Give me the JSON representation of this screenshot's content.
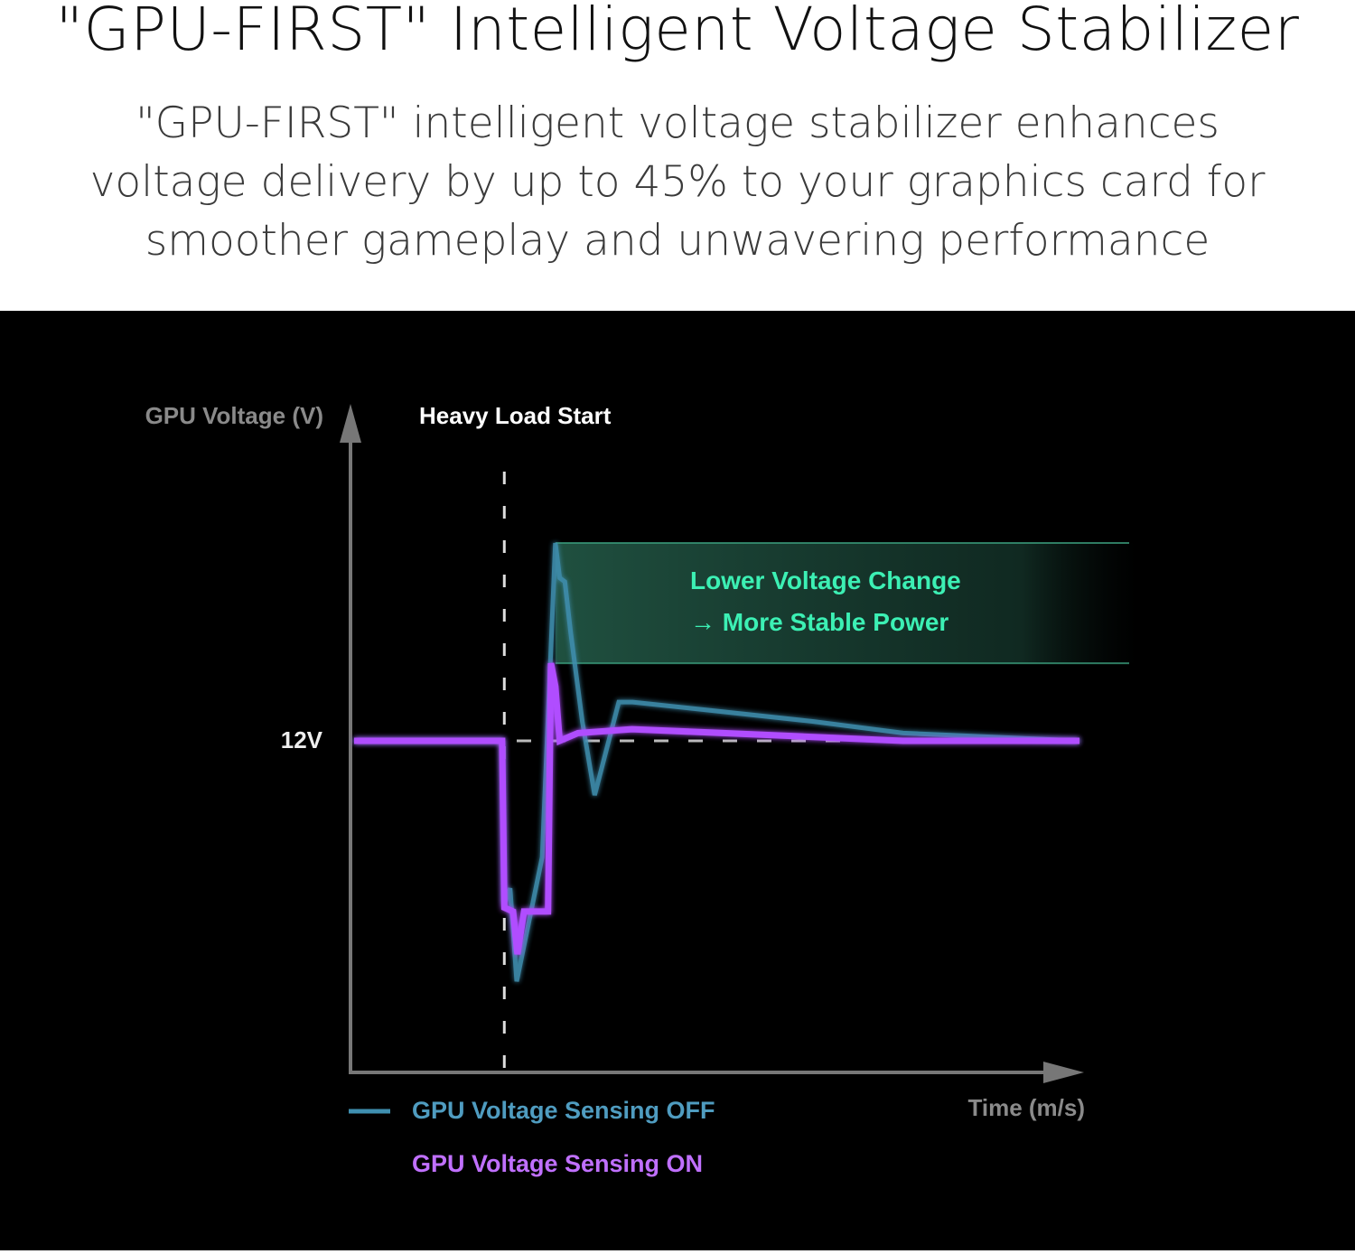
{
  "header": {
    "title": "\"GPU-FIRST\" Intelligent Voltage Stabilizer",
    "subtitle": "\"GPU-FIRST\" intelligent voltage stabilizer enhances voltage delivery by up to 45% to your graphics card for smoother gameplay and unwavering performance"
  },
  "chart_data": {
    "type": "line",
    "ylabel": "GPU Voltage (V)",
    "xlabel": "Time (m/s)",
    "y_tick_labels": [
      "12V"
    ],
    "xlim": [
      0,
      100
    ],
    "ylim": [
      11.15,
      12.85
    ],
    "grid": false,
    "legend_placement": "bottom-left",
    "annotations": {
      "event_label": "Heavy Load Start",
      "event_x": 21.1,
      "band_label_line1": "Lower Voltage Change",
      "band_label_line2": "→ More Stable Power",
      "band_y": [
        12.2,
        12.51
      ],
      "band_x_start": 28.1
    },
    "reference_line_y": 12,
    "colors": {
      "off": "#3f8fb0",
      "on": "#b04dff",
      "band": "#2a6b55",
      "band_text": "#3cf0b4",
      "axis": "#777777"
    },
    "series": [
      {
        "name": "GPU Voltage Sensing OFF",
        "points": [
          [
            0.5,
            12.0
          ],
          [
            20.8,
            12.0
          ],
          [
            21.1,
            11.58
          ],
          [
            21.9,
            11.62
          ],
          [
            22.8,
            11.38
          ],
          [
            26.3,
            11.7
          ],
          [
            28.1,
            12.51
          ],
          [
            28.7,
            12.42
          ],
          [
            29.4,
            12.41
          ],
          [
            30.2,
            12.28
          ],
          [
            31.8,
            12.05
          ],
          [
            33.5,
            11.86
          ],
          [
            36.8,
            12.1
          ],
          [
            38.7,
            12.1
          ],
          [
            48.6,
            12.08
          ],
          [
            63.4,
            12.05
          ],
          [
            75.8,
            12.02
          ],
          [
            100,
            12.0
          ]
        ]
      },
      {
        "name": "GPU Voltage Sensing ON",
        "points": [
          [
            0.5,
            12.0
          ],
          [
            20.8,
            12.0
          ],
          [
            21.1,
            11.57
          ],
          [
            22.3,
            11.56
          ],
          [
            22.9,
            11.45
          ],
          [
            23.8,
            11.56
          ],
          [
            27.1,
            11.56
          ],
          [
            27.5,
            12.2
          ],
          [
            28.1,
            12.14
          ],
          [
            28.7,
            12.0
          ],
          [
            31.2,
            12.02
          ],
          [
            38.6,
            12.03
          ],
          [
            51.1,
            12.02
          ],
          [
            75.8,
            12.0
          ],
          [
            100,
            12.0
          ]
        ]
      }
    ]
  }
}
